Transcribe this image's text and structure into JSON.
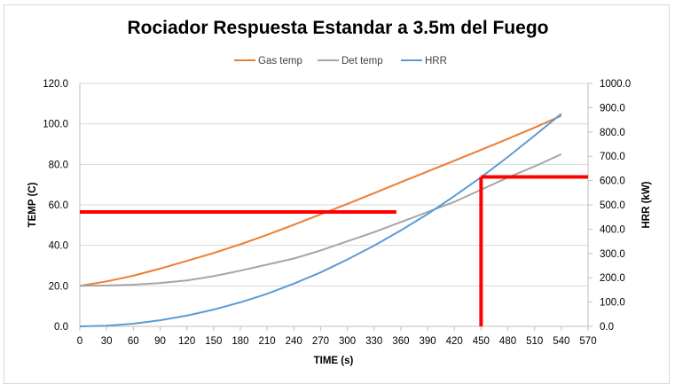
{
  "chart_data": {
    "type": "line",
    "title": "Rociador Respuesta Estandar a 3.5m del Fuego",
    "xlabel": "TIME (s)",
    "ylabel": "TEMP (C)",
    "y2label": "HRR (kW)",
    "xlim": [
      0,
      570
    ],
    "ylim": [
      0,
      120
    ],
    "y2lim": [
      0,
      1000
    ],
    "x_ticks": [
      "0",
      "30",
      "60",
      "90",
      "120",
      "150",
      "180",
      "210",
      "240",
      "270",
      "300",
      "330",
      "360",
      "390",
      "420",
      "450",
      "480",
      "510",
      "540",
      "570"
    ],
    "y_ticks": [
      "0.0",
      "20.0",
      "40.0",
      "60.0",
      "80.0",
      "100.0",
      "120.0"
    ],
    "y2_ticks": [
      "0.0",
      "100.0",
      "200.0",
      "300.0",
      "400.0",
      "500.0",
      "600.0",
      "700.0",
      "800.0",
      "900.0",
      "1000.0"
    ],
    "grid": "horizontal",
    "legend_position": "top",
    "x": [
      0,
      30,
      60,
      90,
      120,
      150,
      180,
      210,
      240,
      270,
      300,
      330,
      360,
      390,
      420,
      450,
      480,
      510,
      540
    ],
    "series": [
      {
        "name": "Gas temp",
        "axis": "left",
        "color": "#ed7d31",
        "values": [
          20,
          22.2,
          25,
          28.5,
          32.3,
          36.2,
          40.5,
          45.2,
          50.2,
          55.3,
          60.5,
          65.8,
          71.2,
          76.5,
          81.8,
          87.2,
          92.6,
          98.2,
          104
        ]
      },
      {
        "name": "Det temp",
        "axis": "left",
        "color": "#a5a5a5",
        "values": [
          20,
          20.2,
          20.6,
          21.4,
          22.7,
          24.8,
          27.5,
          30.5,
          33.5,
          37.5,
          42,
          46.5,
          51.5,
          56.5,
          61.5,
          67.5,
          73.5,
          79,
          85
        ]
      },
      {
        "name": "HRR",
        "axis": "right",
        "color": "#5b9bd5",
        "values": [
          0,
          3,
          11,
          25,
          44,
          69,
          99,
          134,
          176,
          222,
          275,
          332,
          395,
          462,
          536,
          614,
          697,
          785,
          875
        ]
      }
    ],
    "annotations": [
      {
        "type": "hline",
        "axis": "left",
        "y": 56.5,
        "x_from": 0,
        "x_to": 355,
        "color": "#ff0000"
      },
      {
        "type": "vline",
        "x": 450,
        "y2_from": 0,
        "y2_to": 615,
        "color": "#ff0000"
      },
      {
        "type": "hline",
        "axis": "right",
        "y": 615,
        "x_from": 450,
        "x_to": 570,
        "color": "#ff0000"
      }
    ]
  }
}
